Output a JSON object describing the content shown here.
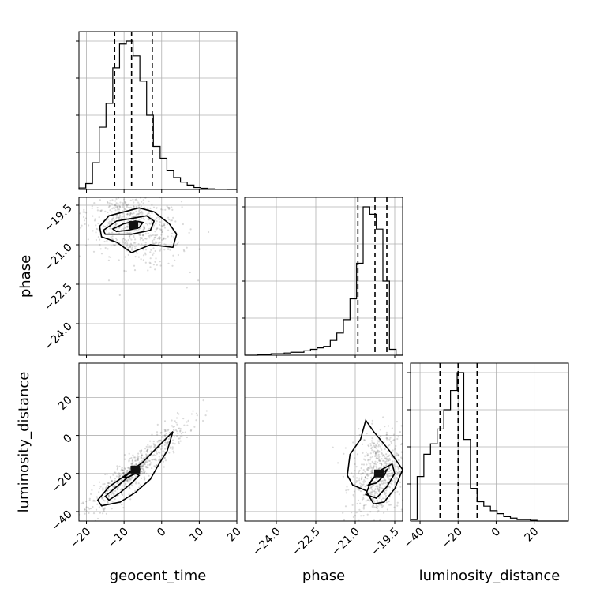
{
  "chart_data": {
    "type": "corner",
    "parameters": [
      "geocent_time",
      "phase",
      "luminosity_distance"
    ],
    "axes": {
      "geocent_time": {
        "label": "geocent_time",
        "range": [
          -22,
          20
        ],
        "ticks": [
          -20,
          -10,
          0,
          10,
          20
        ],
        "tick_labels": [
          "−20",
          "−10",
          "0",
          "10",
          "20"
        ]
      },
      "phase": {
        "label": "phase",
        "range": [
          -25.2,
          -19.2
        ],
        "ticks": [
          -24.0,
          -22.5,
          -21.0,
          -19.5
        ],
        "tick_labels": [
          "−24.0",
          "−22.5",
          "−21.0",
          "−19.5"
        ]
      },
      "luminosity_distance": {
        "label": "luminosity_distance",
        "range": [
          -45,
          38
        ],
        "ticks": [
          -40,
          -20,
          0,
          20
        ],
        "tick_labels": [
          "−40",
          "−20",
          "0",
          "20"
        ]
      }
    },
    "quantiles": {
      "geocent_time": [
        -12.5,
        -8.0,
        -2.5
      ],
      "phase": [
        -20.9,
        -20.25,
        -19.8
      ],
      "luminosity_distance": [
        -29.5,
        -20.0,
        -10.0
      ]
    },
    "histograms": {
      "geocent_time": {
        "edges": [
          -22.0,
          -20.2,
          -18.4,
          -16.6,
          -14.8,
          -13.0,
          -11.2,
          -9.4,
          -7.6,
          -5.8,
          -4.0,
          -2.2,
          -0.4,
          1.4,
          3.2,
          5.0,
          6.8,
          8.6,
          10.4,
          12.2,
          14.0,
          15.8,
          17.6,
          19.4,
          20.0
        ],
        "counts": [
          0.01,
          0.04,
          0.18,
          0.42,
          0.58,
          0.82,
          0.98,
          1.0,
          0.9,
          0.73,
          0.5,
          0.29,
          0.21,
          0.13,
          0.08,
          0.05,
          0.03,
          0.013,
          0.008,
          0.004,
          0.002,
          0.001,
          0.0,
          0.0
        ]
      },
      "phase": {
        "edges": [
          -25.2,
          -24.95,
          -24.7,
          -24.45,
          -24.2,
          -23.95,
          -23.7,
          -23.45,
          -23.2,
          -22.95,
          -22.7,
          -22.45,
          -22.2,
          -21.95,
          -21.7,
          -21.45,
          -21.2,
          -20.95,
          -20.7,
          -20.45,
          -20.2,
          -19.95,
          -19.7,
          -19.45,
          -19.2
        ],
        "counts": [
          0.0,
          0.0,
          0.005,
          0.005,
          0.01,
          0.01,
          0.015,
          0.02,
          0.02,
          0.03,
          0.04,
          0.05,
          0.06,
          0.1,
          0.15,
          0.24,
          0.38,
          0.62,
          1.0,
          0.95,
          0.85,
          0.5,
          0.04,
          0.0
        ]
      },
      "luminosity_distance": {
        "edges": [
          -45.0,
          -41.5,
          -38.0,
          -34.5,
          -31.0,
          -27.5,
          -24.0,
          -20.5,
          -17.0,
          -13.5,
          -10.0,
          -6.5,
          -3.0,
          0.5,
          4.0,
          7.5,
          11.0,
          14.5,
          18.0,
          21.5,
          25.0,
          28.5,
          32.0,
          35.5,
          38.0
        ],
        "counts": [
          0.01,
          0.3,
          0.45,
          0.52,
          0.62,
          0.75,
          0.88,
          1.0,
          0.55,
          0.22,
          0.13,
          0.1,
          0.07,
          0.05,
          0.03,
          0.02,
          0.01,
          0.01,
          0.005,
          0.0,
          0.0,
          0.0,
          0.0,
          0.0
        ]
      }
    },
    "pairs": [
      {
        "x": "geocent_time",
        "y": "phase",
        "center": [
          -7.5,
          -20.25
        ],
        "sigma": [
          5.5,
          0.65
        ],
        "rho": -0.35,
        "contour_levels": [
          [
            [
              -16.5,
              -20.3
            ],
            [
              -14,
              -19.9
            ],
            [
              -10,
              -19.75
            ],
            [
              -6,
              -19.6
            ],
            [
              -2,
              -19.75
            ],
            [
              2,
              -20.2
            ],
            [
              4,
              -20.6
            ],
            [
              3,
              -21.1
            ],
            [
              -3,
              -21.0
            ],
            [
              -8,
              -21.3
            ],
            [
              -12,
              -20.9
            ],
            [
              -16,
              -20.7
            ]
          ],
          [
            [
              -15.5,
              -20.45
            ],
            [
              -12,
              -20.1
            ],
            [
              -8,
              -20.0
            ],
            [
              -4,
              -19.9
            ],
            [
              -2,
              -20.1
            ],
            [
              -3,
              -20.45
            ],
            [
              -8,
              -20.6
            ],
            [
              -12,
              -20.6
            ],
            [
              -15,
              -20.6
            ]
          ],
          [
            [
              -13,
              -20.4
            ],
            [
              -10,
              -20.2
            ],
            [
              -7,
              -20.1
            ],
            [
              -5,
              -20.15
            ],
            [
              -6,
              -20.35
            ],
            [
              -9,
              -20.45
            ],
            [
              -12,
              -20.5
            ]
          ]
        ]
      },
      {
        "x": "geocent_time",
        "y": "luminosity_distance",
        "center": [
          -7.0,
          -18.0
        ],
        "sigma": [
          6.0,
          11.0
        ],
        "rho": 0.93,
        "contour_levels": [
          [
            [
              -17,
              -34
            ],
            [
              -14,
              -27
            ],
            [
              -9,
              -20
            ],
            [
              -5,
              -14
            ],
            [
              -2,
              -8
            ],
            [
              1,
              -2
            ],
            [
              3,
              2
            ],
            [
              1.5,
              -8
            ],
            [
              -1,
              -16
            ],
            [
              -3,
              -23
            ],
            [
              -7,
              -30
            ],
            [
              -11,
              -35
            ],
            [
              -16,
              -37
            ]
          ],
          [
            [
              -15,
              -32
            ],
            [
              -12,
              -27
            ],
            [
              -9,
              -22
            ],
            [
              -7,
              -20
            ],
            [
              -6,
              -21
            ],
            [
              -8,
              -25
            ],
            [
              -11,
              -30
            ],
            [
              -14,
              -34
            ]
          ],
          [
            [
              -10,
              -22
            ],
            [
              -8,
              -19
            ],
            [
              -6,
              -18
            ],
            [
              -7,
              -20
            ],
            [
              -9,
              -22
            ]
          ]
        ]
      },
      {
        "x": "phase",
        "y": "luminosity_distance",
        "center": [
          -20.1,
          -20.0
        ],
        "sigma": [
          0.45,
          10.0
        ],
        "rho": 0.25,
        "contour_levels": [
          [
            [
              -21.3,
              -21
            ],
            [
              -21.2,
              -10
            ],
            [
              -20.8,
              -2
            ],
            [
              -20.6,
              8
            ],
            [
              -20.3,
              2
            ],
            [
              -19.7,
              -8
            ],
            [
              -19.2,
              -18
            ],
            [
              -19.5,
              -28
            ],
            [
              -19.9,
              -35
            ],
            [
              -20.3,
              -36
            ],
            [
              -20.6,
              -29
            ],
            [
              -21.1,
              -26
            ]
          ],
          [
            [
              -20.6,
              -31
            ],
            [
              -20.4,
              -24
            ],
            [
              -20.0,
              -18
            ],
            [
              -19.6,
              -15
            ],
            [
              -19.5,
              -20
            ],
            [
              -19.8,
              -27
            ],
            [
              -20.2,
              -33
            ]
          ],
          [
            [
              -20.5,
              -26
            ],
            [
              -20.3,
              -22
            ],
            [
              -20.0,
              -20
            ],
            [
              -19.8,
              -18
            ],
            [
              -19.9,
              -21
            ],
            [
              -20.2,
              -25
            ]
          ]
        ]
      }
    ]
  }
}
